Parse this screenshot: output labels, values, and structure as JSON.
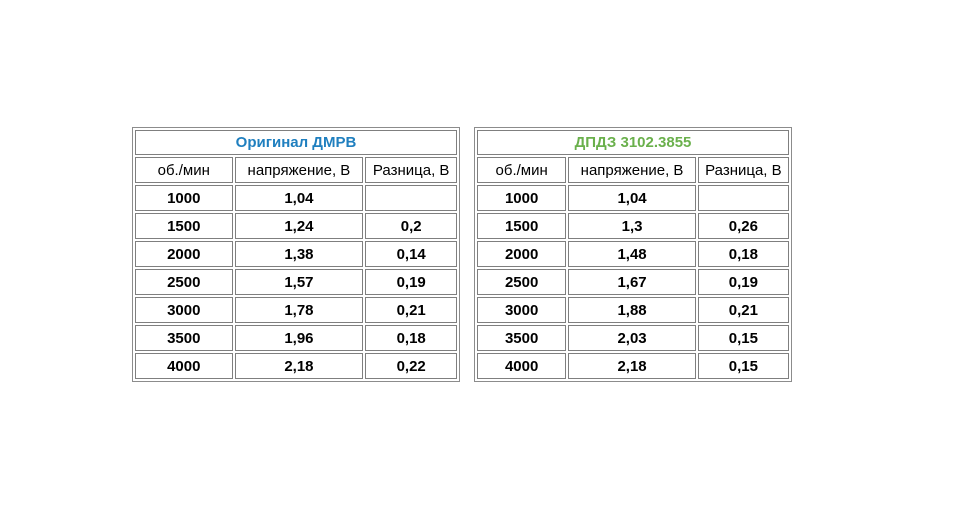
{
  "tables": [
    {
      "title": "Оригинал ДМРВ",
      "title_color": "#1f7fbf",
      "headers": [
        "об./мин",
        "напряжение, В",
        "Разница, В"
      ],
      "rows": [
        [
          "1000",
          "1,04",
          ""
        ],
        [
          "1500",
          "1,24",
          "0,2"
        ],
        [
          "2000",
          "1,38",
          "0,14"
        ],
        [
          "2500",
          "1,57",
          "0,19"
        ],
        [
          "3000",
          "1,78",
          "0,21"
        ],
        [
          "3500",
          "1,96",
          "0,18"
        ],
        [
          "4000",
          "2,18",
          "0,22"
        ]
      ]
    },
    {
      "title": "ДПДЗ 3102.3855",
      "title_color": "#6ab04c",
      "headers": [
        "об./мин",
        "напряжение, В",
        "Разница, В"
      ],
      "rows": [
        [
          "1000",
          "1,04",
          ""
        ],
        [
          "1500",
          "1,3",
          "0,26"
        ],
        [
          "2000",
          "1,48",
          "0,18"
        ],
        [
          "2500",
          "1,67",
          "0,19"
        ],
        [
          "3000",
          "1,88",
          "0,21"
        ],
        [
          "3500",
          "2,03",
          "0,15"
        ],
        [
          "4000",
          "2,18",
          "0,15"
        ]
      ]
    }
  ]
}
